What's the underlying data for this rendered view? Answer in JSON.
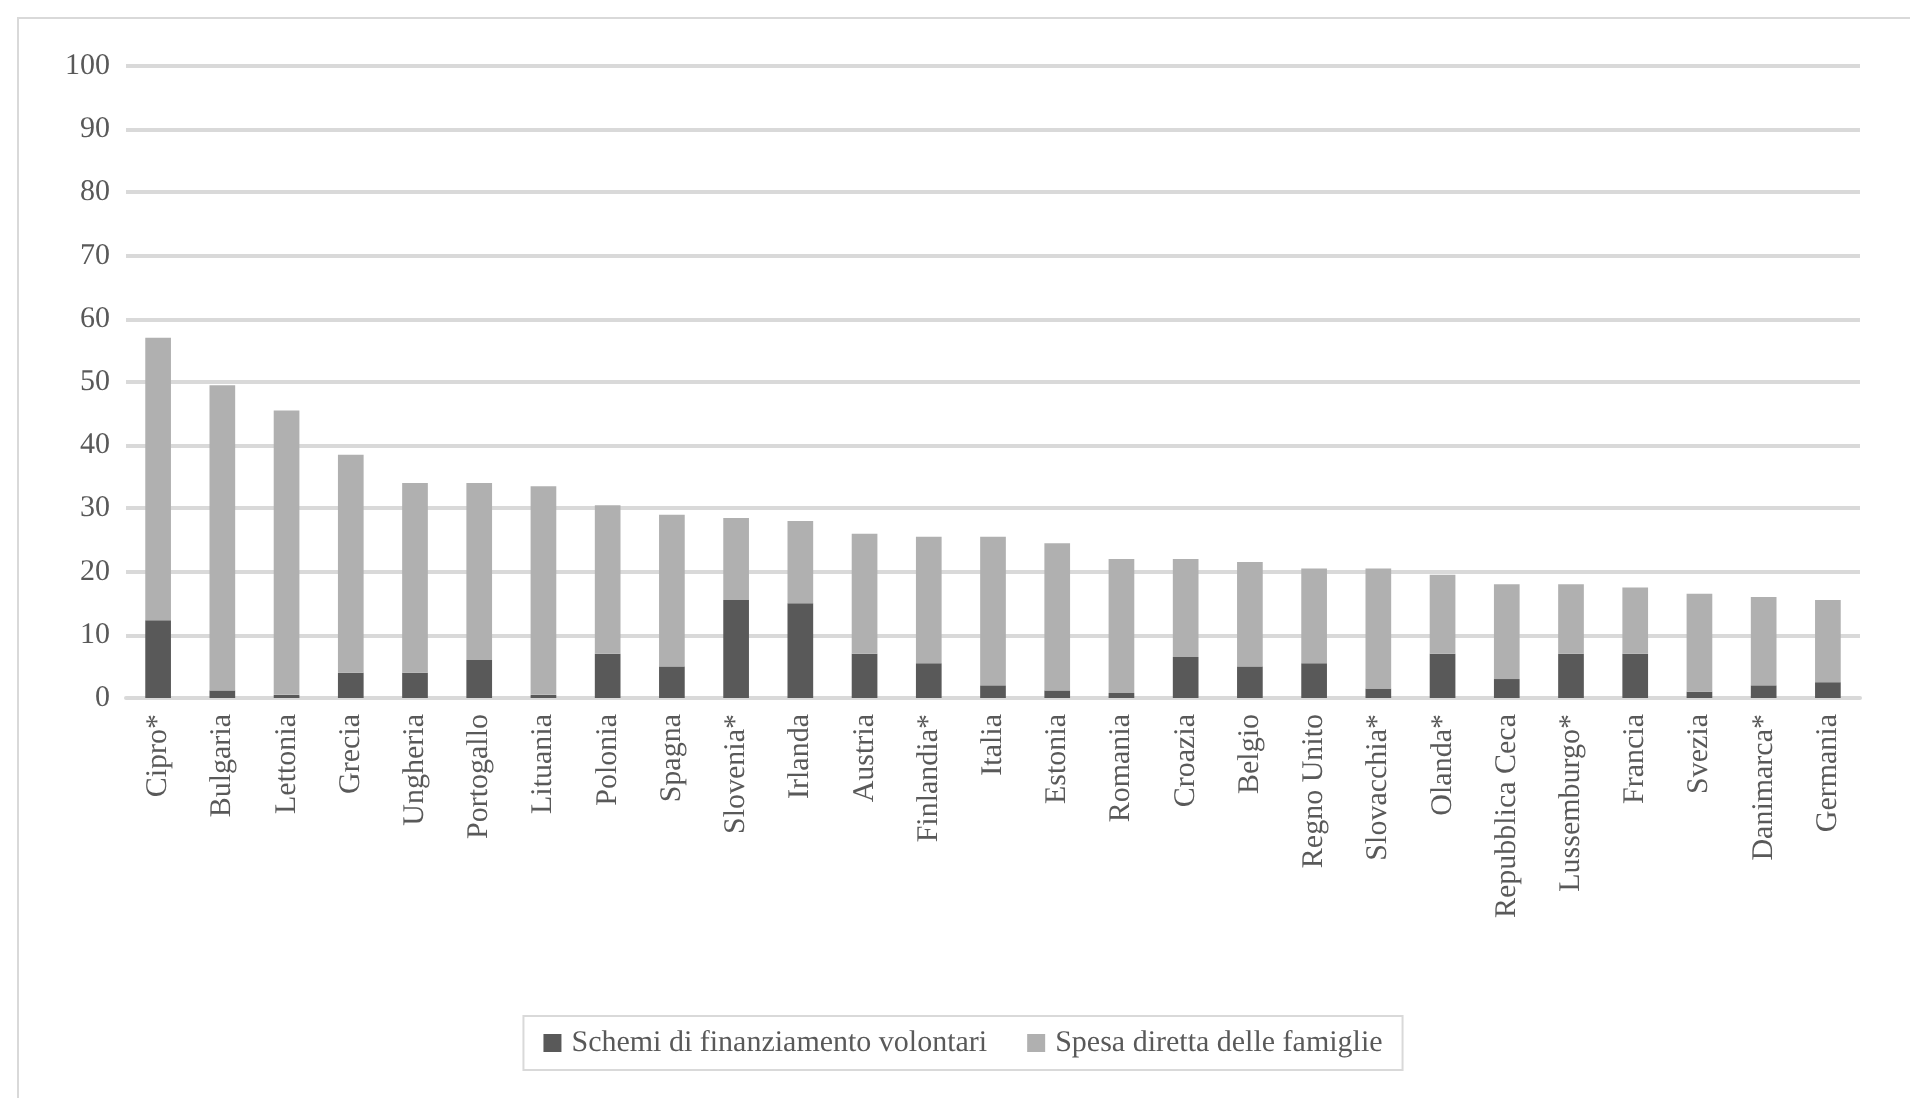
{
  "chart_data": {
    "type": "bar",
    "stacked": true,
    "categories": [
      "Cipro*",
      "Bulgaria",
      "Lettonia",
      "Grecia",
      "Ungheria",
      "Portogallo",
      "Lituania",
      "Polonia",
      "Spagna",
      "Slovenia*",
      "Irlanda",
      "Austria",
      "Finlandia*",
      "Italia",
      "Estonia",
      "Romania",
      "Croazia",
      "Belgio",
      "Regno Unito",
      "Slovacchia*",
      "Olanda*",
      "Repubblica Ceca",
      "Lussemburgo*",
      "Francia",
      "Svezia",
      "Danimarca*",
      "Germania"
    ],
    "series": [
      {
        "name": "Schemi di finanziamento volontari",
        "color": "#595959",
        "values": [
          12.3,
          1.2,
          0.5,
          4,
          4,
          6,
          0.5,
          7,
          5,
          15.5,
          15,
          7,
          5.5,
          2,
          1.2,
          0.8,
          6.5,
          5,
          5.5,
          1.5,
          7,
          3,
          7,
          7,
          1,
          2,
          2.5
        ]
      },
      {
        "name": "Spesa diretta delle famiglie",
        "color": "#b0b0b0",
        "values": [
          44.7,
          48.3,
          45,
          34.5,
          30,
          28,
          33,
          23.5,
          24,
          13,
          13,
          19,
          20,
          23.5,
          23.3,
          21.2,
          15.5,
          16.5,
          15,
          19,
          12.5,
          15,
          11,
          10.5,
          15.5,
          14,
          13
        ]
      }
    ],
    "ylim": [
      0,
      100
    ],
    "yticks": [
      0,
      10,
      20,
      30,
      40,
      50,
      60,
      70,
      80,
      90,
      100
    ],
    "grid": "y",
    "legend": "bottom"
  }
}
